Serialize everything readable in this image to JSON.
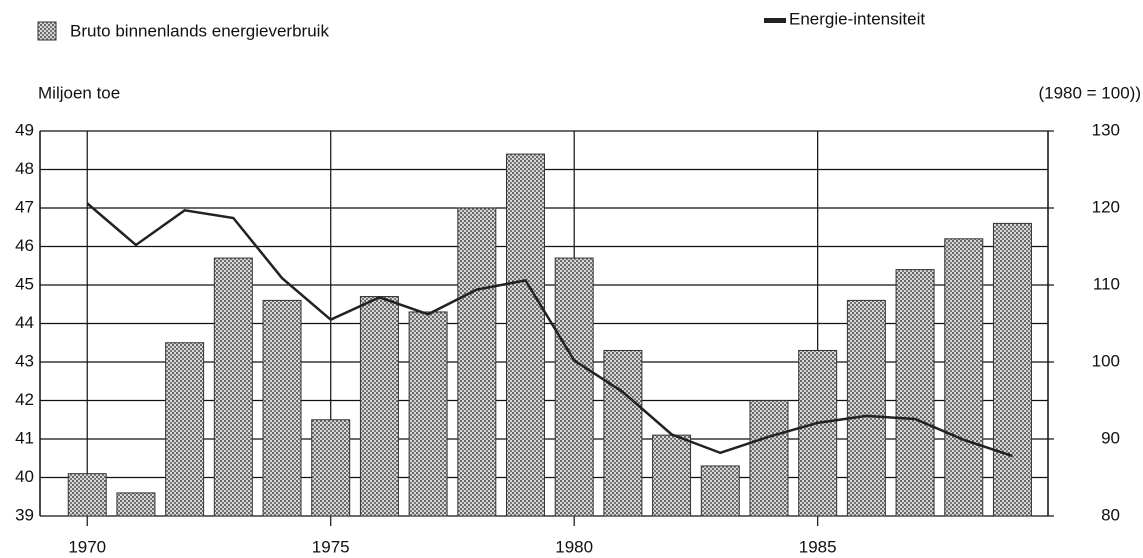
{
  "chart_data": {
    "type": "bar",
    "y_label": "Miljoen toe",
    "y2_label": "(1980 = 100))",
    "x": [
      1970,
      1971,
      1972,
      1973,
      1974,
      1975,
      1976,
      1977,
      1978,
      1979,
      1980,
      1981,
      1982,
      1983,
      1984,
      1985,
      1986,
      1987,
      1988,
      1989
    ],
    "xlim": [
      1969.03,
      1989.73
    ],
    "xticks": [
      1970,
      1975,
      1980,
      1985
    ],
    "ylim": [
      39,
      49
    ],
    "yticks": [
      39,
      40,
      41,
      42,
      43,
      44,
      45,
      46,
      47,
      48,
      49
    ],
    "y2lim": [
      80,
      130
    ],
    "y2ticks": [
      80,
      90,
      100,
      110,
      120,
      130
    ],
    "grid": true,
    "series": [
      {
        "name": "Bruto binnenlands energieverbruik",
        "type": "bar",
        "color": "#9a9a9a",
        "values": [
          40.1,
          39.6,
          43.5,
          45.7,
          44.6,
          41.5,
          44.7,
          44.3,
          47.0,
          48.4,
          45.7,
          43.3,
          41.1,
          40.3,
          42.0,
          43.3,
          44.6,
          45.4,
          46.2,
          46.6
        ]
      },
      {
        "name": "Energie-intensiteit",
        "type": "line",
        "axis": "y2",
        "color": "#222222",
        "values": [
          120.6,
          115.2,
          119.7,
          118.7,
          110.9,
          105.5,
          108.4,
          106.2,
          109.4,
          110.6,
          100.2,
          96.1,
          90.6,
          88.2,
          90.3,
          92.1,
          93.0,
          92.6,
          89.9,
          87.8
        ]
      }
    ]
  }
}
